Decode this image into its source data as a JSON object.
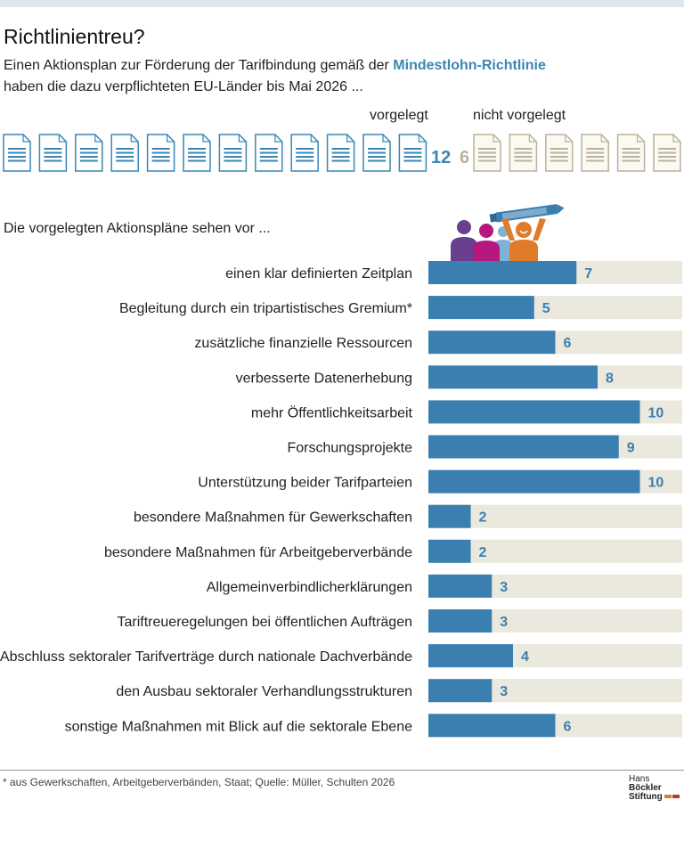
{
  "header": {
    "title": "Richtlinientreu?",
    "subtitle_part1": "Einen Aktionsplan zur Förderung der Tarifbindung gemäß der ",
    "subtitle_highlight": "Mindestlohn-Richtlinie",
    "subtitle_part2": "haben die dazu verpflichteten EU-Länder bis Mai 2026 ..."
  },
  "status": {
    "submitted_label": "vorgelegt",
    "not_submitted_label": "nicht vorgelegt",
    "submitted_count": 12,
    "not_submitted_count": 6,
    "submitted_text": "12",
    "not_submitted_text": "6",
    "submitted_color": "#3a86b4",
    "not_submitted_color": "#b8b29c",
    "icon": "document-icon"
  },
  "intro": "Die vorgelegten Aktionspläne sehen vor ...",
  "illustration": "people-with-pen-icon",
  "chart_data": {
    "type": "bar",
    "orientation": "horizontal",
    "xlim": [
      0,
      12
    ],
    "categories": [
      "einen klar definierten Zeitplan",
      "Begleitung durch ein tripartistisches Gremium*",
      "zusätzliche finanzielle Ressourcen",
      "verbesserte Datenerhebung",
      "mehr Öffentlichkeitsarbeit",
      "Forschungsprojekte",
      "Unterstützung beider Tarifparteien",
      "besondere Maßnahmen für Gewerkschaften",
      "besondere Maßnahmen für Arbeitgeberverbände",
      "Allgemeinverbindlicherklärungen",
      "Tariftreueregelungen bei öffentlichen Aufträgen",
      "den Abschluss sektoraler Tarifverträge durch nationale Dachverbände",
      "den Ausbau sektoraler Verhandlungsstrukturen",
      "sonstige Maßnahmen mit Blick auf die sektorale Ebene"
    ],
    "values": [
      7,
      5,
      6,
      8,
      10,
      9,
      10,
      2,
      2,
      3,
      3,
      4,
      3,
      6
    ],
    "bar_color": "#3a7fb0",
    "background_color": "#ebe8de",
    "label_color": "#3a7fb0"
  },
  "footer": {
    "footnote": "* aus Gewerkschaften, Arbeitgeberverbänden, Staat; Quelle: Müller, Schulten 2026",
    "logo_line1_a": "Hans ",
    "logo_line1_b": "Böckler",
    "logo_line2": "Stiftung"
  }
}
